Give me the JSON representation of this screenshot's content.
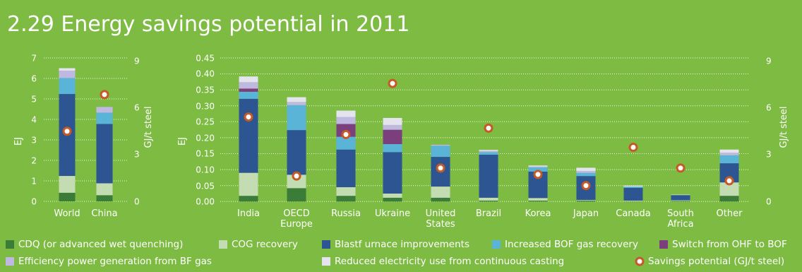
{
  "title": "2.29 Energy savings potential in 2011",
  "colors": {
    "background": "#7dbb42",
    "CDQ": "#3c7c39",
    "COG": "#c3dcb2",
    "BFI": "#2c5592",
    "BOF": "#59b4d8",
    "OHF": "#7b3f7e",
    "EPG": "#bfb8e0",
    "CC": "#e4e4ef",
    "savings_marker_fill": "#ffffff",
    "savings_marker_stroke": "#c65a26"
  },
  "legend": {
    "cdq": "CDQ (or advanced wet quenching)",
    "cog": "COG recovery",
    "bfi": "Blastf urnace improvements",
    "bof": "Increased BOF gas recovery",
    "ohf": "Switch from OHF to BOF",
    "epg": "Efficiency power generation from BF gas",
    "cc": "Reduced electricity use from continuous casting",
    "sav": "Savings potential (GJ/t steel)"
  },
  "chart_data": [
    {
      "type": "bar",
      "stacked": true,
      "categories": [
        "World",
        "China"
      ],
      "series": [
        {
          "name": "CDQ (or advanced wet quenching)",
          "key": "CDQ",
          "values": [
            0.42,
            0.3
          ]
        },
        {
          "name": "COG recovery",
          "key": "COG",
          "values": [
            0.82,
            0.58
          ]
        },
        {
          "name": "Blastf urnace improvements",
          "key": "BFI",
          "values": [
            4.0,
            2.9
          ]
        },
        {
          "name": "Increased BOF gas recovery",
          "key": "BOF",
          "values": [
            0.78,
            0.55
          ]
        },
        {
          "name": "Switch from OHF to BOF",
          "key": "OHF",
          "values": [
            0.0,
            0.0
          ]
        },
        {
          "name": "Efficiency power generation from BF gas",
          "key": "EPG",
          "values": [
            0.36,
            0.28
          ]
        },
        {
          "name": "Reduced electricity use from continuous casting",
          "key": "CC",
          "values": [
            0.12,
            0.0
          ]
        }
      ],
      "savings_potential": [
        4.4,
        6.7
      ],
      "ylabel": "EJ",
      "y2label": "GJ/t steel",
      "ylim": [
        0,
        7
      ],
      "yticks": [
        "0",
        "1",
        "2",
        "3",
        "4",
        "5",
        "6",
        "7"
      ],
      "y2lim": [
        0,
        9
      ],
      "y2ticks": [
        "0",
        "3",
        "6",
        "9"
      ],
      "grid": true
    },
    {
      "type": "bar",
      "stacked": true,
      "categories": [
        "India",
        "OECD Europe",
        "Russia",
        "Ukraine",
        "United States",
        "Brazil",
        "Korea",
        "Japan",
        "Canada",
        "South Africa",
        "Other"
      ],
      "series": [
        {
          "name": "CDQ (or advanced wet quenching)",
          "key": "CDQ",
          "values": [
            0.018,
            0.042,
            0.018,
            0.012,
            0.012,
            0.003,
            0.003,
            0.003,
            0.001,
            0.002,
            0.018
          ]
        },
        {
          "name": "COG recovery",
          "key": "COG",
          "values": [
            0.072,
            0.042,
            0.027,
            0.013,
            0.035,
            0.009,
            0.008,
            0.002,
            0.002,
            0.002,
            0.042
          ]
        },
        {
          "name": "Blastf urnace improvements",
          "key": "BFI",
          "values": [
            0.232,
            0.14,
            0.118,
            0.13,
            0.093,
            0.135,
            0.083,
            0.075,
            0.04,
            0.016,
            0.06
          ]
        },
        {
          "name": "Increased BOF gas recovery",
          "key": "BOF",
          "values": [
            0.022,
            0.078,
            0.04,
            0.025,
            0.035,
            0.008,
            0.013,
            0.01,
            0.004,
            0.001,
            0.025
          ]
        },
        {
          "name": "Switch from OHF to BOF",
          "key": "OHF",
          "values": [
            0.01,
            0.0,
            0.04,
            0.045,
            0.0,
            0.0,
            0.0,
            0.0,
            0.0,
            0.0,
            0.0
          ]
        },
        {
          "name": "Efficiency power generation from BF gas",
          "key": "EPG",
          "values": [
            0.02,
            0.01,
            0.022,
            0.015,
            0.003,
            0.004,
            0.003,
            0.006,
            0.0,
            0.0,
            0.008
          ]
        },
        {
          "name": "Reduced electricity use from continuous casting",
          "key": "CC",
          "values": [
            0.018,
            0.015,
            0.02,
            0.022,
            0.0,
            0.003,
            0.003,
            0.01,
            0.003,
            0.001,
            0.01
          ]
        }
      ],
      "savings_potential": [
        5.3,
        1.6,
        4.2,
        7.4,
        2.1,
        4.6,
        1.7,
        1.0,
        3.4,
        2.1,
        1.3
      ],
      "ylabel": "EJ",
      "y2label": "GJ/t steel",
      "ylim": [
        0,
        0.45
      ],
      "yticks": [
        "0.00",
        "0.05",
        "0.10",
        "0.15",
        "0.20",
        "0.25",
        "0.30",
        "0.35",
        "0.40",
        "0.45"
      ],
      "y2lim": [
        0,
        9
      ],
      "y2ticks": [
        "0",
        "3",
        "6",
        "9"
      ],
      "grid": true
    }
  ]
}
